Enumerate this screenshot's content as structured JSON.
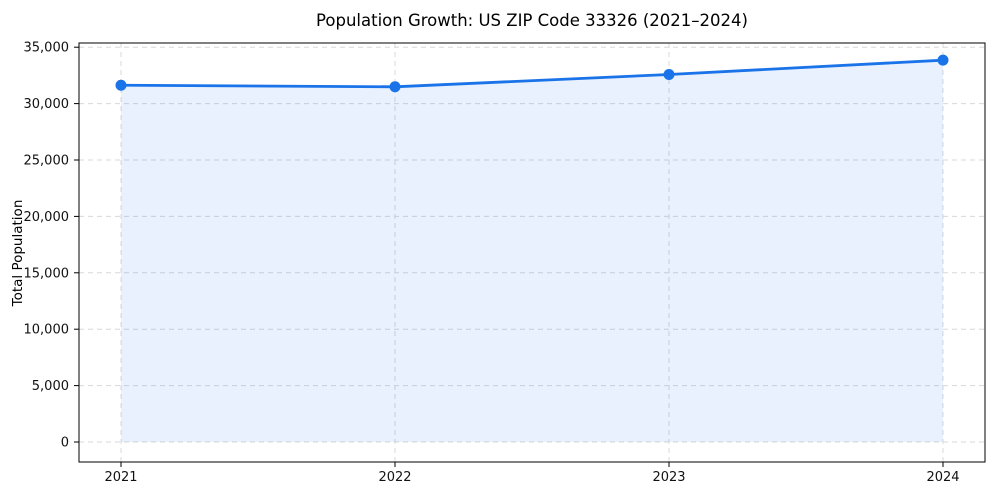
{
  "chart_data": {
    "type": "area",
    "title": "Population Growth: US ZIP Code 33326 (2021–2024)",
    "xlabel": "",
    "ylabel": "Total Population",
    "categories": [
      "2021",
      "2022",
      "2023",
      "2024"
    ],
    "series": [
      {
        "name": "Total Population",
        "values": [
          31630,
          31490,
          32580,
          33850
        ]
      }
    ],
    "ylim": [
      0,
      35000
    ],
    "y_ticks": [
      0,
      5000,
      10000,
      15000,
      20000,
      25000,
      30000,
      35000
    ],
    "y_tick_labels": [
      "0",
      "5,000",
      "10,000",
      "15,000",
      "20,000",
      "25,000",
      "30,000",
      "35,000"
    ],
    "grid": true,
    "grid_style": "dashed",
    "legend": false,
    "colors": {
      "line": "#1a73e8",
      "marker": "#1a73e8",
      "fill": "rgba(26,115,232,0.10)",
      "grid": "#d8d8d8",
      "spine": "#000000",
      "tick_text": "#111111",
      "background": "#ffffff"
    }
  }
}
